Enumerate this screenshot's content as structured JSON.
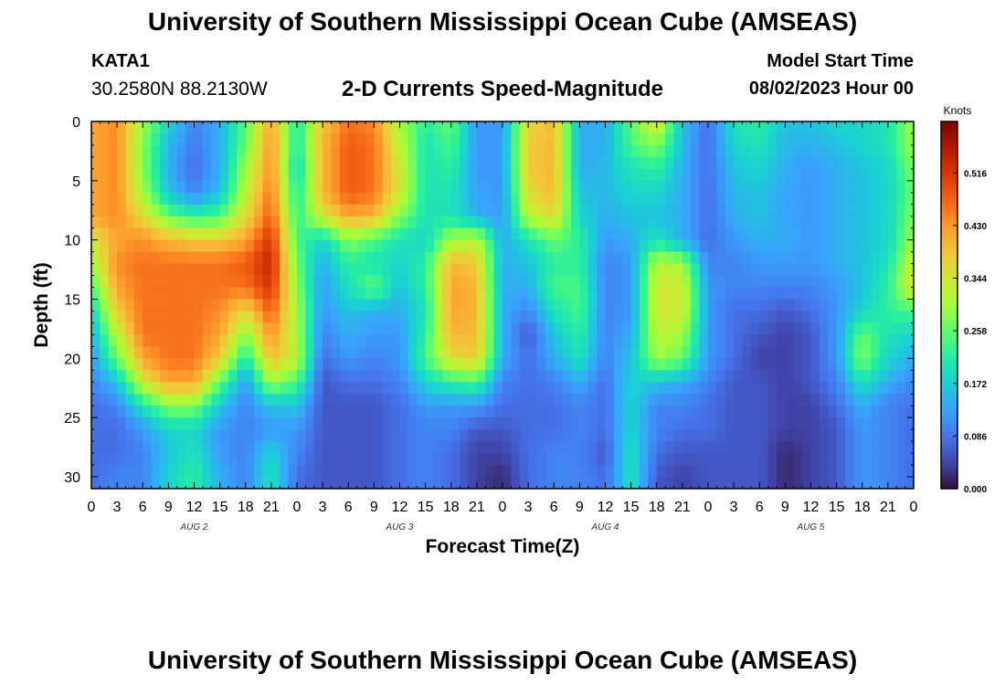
{
  "header": {
    "title": "University of Southern Mississippi Ocean Cube (AMSEAS)",
    "station_id": "KATA1",
    "station_coords": "30.2580N  88.2130W",
    "subtitle": "2-D Currents Speed-Magnitude",
    "model_start_label": "Model Start Time",
    "model_start_value": "08/02/2023 Hour 00"
  },
  "footer": {
    "title": "University of Southern Mississippi Ocean Cube (AMSEAS)"
  },
  "colors": {
    "colormap": [
      "#30123b",
      "#4145ab",
      "#4675ed",
      "#39a2fc",
      "#1bcfd4",
      "#24eca6",
      "#61fc6c",
      "#a4fc3b",
      "#d1e834",
      "#f3c63a",
      "#fe9b2d",
      "#f36315",
      "#d93806",
      "#b11901",
      "#7a0402"
    ]
  },
  "chart_data": {
    "type": "heatmap",
    "title": "2-D Currents Speed-Magnitude",
    "xlabel": "Forecast Time(Z)",
    "ylabel": "Depth (ft)",
    "x_tick_labels": [
      "0",
      "3",
      "6",
      "9",
      "12",
      "15",
      "18",
      "21",
      "0",
      "3",
      "6",
      "9",
      "12",
      "15",
      "18",
      "21",
      "0",
      "3",
      "6",
      "9",
      "12",
      "15",
      "18",
      "21",
      "0",
      "3",
      "6",
      "9",
      "12",
      "15",
      "18",
      "21",
      "0"
    ],
    "x_hours": [
      0,
      96
    ],
    "day_labels": [
      {
        "label": "AUG 2",
        "hour": 12
      },
      {
        "label": "AUG 3",
        "hour": 36
      },
      {
        "label": "AUG 4",
        "hour": 60
      },
      {
        "label": "AUG 5",
        "hour": 84
      }
    ],
    "y_ticks": [
      0,
      5,
      10,
      15,
      20,
      25,
      30
    ],
    "ylim": [
      0,
      31
    ],
    "y_inverted": true,
    "colorbar": {
      "label": "Knots",
      "ticks": [
        "0.000",
        "0.086",
        "0.172",
        "0.258",
        "0.344",
        "0.430",
        "0.516"
      ],
      "range": [
        0,
        0.6
      ]
    },
    "value_min": 0,
    "value_max": 0.6,
    "depth_levels": [
      0,
      2,
      4,
      6,
      8,
      10,
      12,
      14,
      16,
      18,
      20,
      22,
      24,
      26,
      28,
      30,
      31
    ],
    "time_hours": [
      0,
      3,
      6,
      9,
      12,
      15,
      18,
      21,
      24,
      27,
      30,
      33,
      36,
      39,
      42,
      45,
      48,
      51,
      54,
      57,
      60,
      63,
      66,
      69,
      72,
      75,
      78,
      81,
      84,
      87,
      90,
      93,
      96
    ],
    "values": [
      [
        0.42,
        0.44,
        0.3,
        0.18,
        0.1,
        0.14,
        0.25,
        0.42,
        0.2,
        0.38,
        0.46,
        0.44,
        0.3,
        0.22,
        0.26,
        0.12,
        0.12,
        0.36,
        0.4,
        0.14,
        0.14,
        0.25,
        0.36,
        0.16,
        0.08,
        0.2,
        0.22,
        0.16,
        0.16,
        0.18,
        0.18,
        0.2,
        0.3
      ],
      [
        0.42,
        0.44,
        0.28,
        0.15,
        0.09,
        0.14,
        0.26,
        0.44,
        0.2,
        0.4,
        0.48,
        0.46,
        0.32,
        0.2,
        0.24,
        0.12,
        0.12,
        0.38,
        0.4,
        0.14,
        0.14,
        0.24,
        0.28,
        0.15,
        0.08,
        0.18,
        0.2,
        0.15,
        0.14,
        0.16,
        0.18,
        0.2,
        0.3
      ],
      [
        0.42,
        0.44,
        0.28,
        0.14,
        0.08,
        0.14,
        0.3,
        0.44,
        0.18,
        0.4,
        0.48,
        0.46,
        0.34,
        0.2,
        0.22,
        0.12,
        0.12,
        0.38,
        0.4,
        0.14,
        0.15,
        0.2,
        0.22,
        0.14,
        0.08,
        0.16,
        0.18,
        0.14,
        0.12,
        0.14,
        0.16,
        0.18,
        0.28
      ],
      [
        0.42,
        0.44,
        0.3,
        0.16,
        0.1,
        0.16,
        0.32,
        0.46,
        0.2,
        0.4,
        0.48,
        0.46,
        0.34,
        0.2,
        0.2,
        0.13,
        0.12,
        0.36,
        0.4,
        0.16,
        0.15,
        0.18,
        0.18,
        0.14,
        0.08,
        0.15,
        0.16,
        0.13,
        0.12,
        0.14,
        0.16,
        0.18,
        0.26
      ],
      [
        0.42,
        0.44,
        0.36,
        0.26,
        0.22,
        0.24,
        0.36,
        0.48,
        0.22,
        0.34,
        0.42,
        0.4,
        0.28,
        0.2,
        0.2,
        0.14,
        0.12,
        0.32,
        0.36,
        0.18,
        0.14,
        0.16,
        0.16,
        0.14,
        0.08,
        0.14,
        0.16,
        0.13,
        0.12,
        0.14,
        0.16,
        0.18,
        0.28
      ],
      [
        0.34,
        0.42,
        0.44,
        0.4,
        0.38,
        0.38,
        0.42,
        0.52,
        0.24,
        0.18,
        0.28,
        0.24,
        0.2,
        0.18,
        0.3,
        0.32,
        0.14,
        0.2,
        0.26,
        0.22,
        0.12,
        0.14,
        0.2,
        0.14,
        0.08,
        0.12,
        0.14,
        0.14,
        0.12,
        0.14,
        0.16,
        0.18,
        0.3
      ],
      [
        0.3,
        0.44,
        0.46,
        0.46,
        0.46,
        0.46,
        0.48,
        0.54,
        0.26,
        0.14,
        0.22,
        0.2,
        0.18,
        0.22,
        0.4,
        0.38,
        0.14,
        0.16,
        0.22,
        0.22,
        0.1,
        0.12,
        0.32,
        0.3,
        0.1,
        0.1,
        0.12,
        0.12,
        0.12,
        0.14,
        0.16,
        0.2,
        0.34
      ],
      [
        0.24,
        0.42,
        0.46,
        0.46,
        0.46,
        0.46,
        0.46,
        0.52,
        0.28,
        0.12,
        0.2,
        0.26,
        0.16,
        0.22,
        0.42,
        0.4,
        0.14,
        0.14,
        0.24,
        0.24,
        0.1,
        0.12,
        0.34,
        0.34,
        0.12,
        0.1,
        0.1,
        0.1,
        0.1,
        0.12,
        0.16,
        0.22,
        0.36
      ],
      [
        0.18,
        0.38,
        0.46,
        0.46,
        0.46,
        0.44,
        0.36,
        0.48,
        0.3,
        0.12,
        0.16,
        0.14,
        0.14,
        0.2,
        0.42,
        0.4,
        0.14,
        0.1,
        0.2,
        0.24,
        0.1,
        0.12,
        0.34,
        0.34,
        0.12,
        0.08,
        0.08,
        0.06,
        0.08,
        0.12,
        0.18,
        0.22,
        0.24
      ],
      [
        0.14,
        0.32,
        0.46,
        0.46,
        0.46,
        0.42,
        0.28,
        0.44,
        0.3,
        0.1,
        0.14,
        0.12,
        0.12,
        0.22,
        0.4,
        0.4,
        0.14,
        0.06,
        0.16,
        0.22,
        0.1,
        0.14,
        0.32,
        0.3,
        0.12,
        0.08,
        0.06,
        0.04,
        0.06,
        0.12,
        0.26,
        0.2,
        0.18
      ],
      [
        0.12,
        0.26,
        0.42,
        0.46,
        0.46,
        0.38,
        0.2,
        0.4,
        0.32,
        0.08,
        0.12,
        0.1,
        0.12,
        0.24,
        0.36,
        0.38,
        0.14,
        0.08,
        0.14,
        0.2,
        0.1,
        0.16,
        0.3,
        0.26,
        0.12,
        0.08,
        0.04,
        0.04,
        0.06,
        0.12,
        0.28,
        0.18,
        0.14
      ],
      [
        0.1,
        0.16,
        0.34,
        0.42,
        0.42,
        0.26,
        0.12,
        0.3,
        0.24,
        0.06,
        0.08,
        0.08,
        0.1,
        0.18,
        0.22,
        0.24,
        0.1,
        0.08,
        0.1,
        0.14,
        0.08,
        0.18,
        0.16,
        0.14,
        0.1,
        0.06,
        0.06,
        0.04,
        0.06,
        0.1,
        0.2,
        0.14,
        0.1
      ],
      [
        0.08,
        0.1,
        0.2,
        0.28,
        0.28,
        0.16,
        0.1,
        0.16,
        0.16,
        0.06,
        0.06,
        0.06,
        0.08,
        0.12,
        0.12,
        0.12,
        0.08,
        0.08,
        0.08,
        0.1,
        0.08,
        0.18,
        0.1,
        0.1,
        0.08,
        0.06,
        0.06,
        0.04,
        0.04,
        0.08,
        0.14,
        0.1,
        0.08
      ],
      [
        0.08,
        0.08,
        0.12,
        0.18,
        0.18,
        0.12,
        0.1,
        0.12,
        0.12,
        0.06,
        0.06,
        0.06,
        0.08,
        0.1,
        0.1,
        0.06,
        0.06,
        0.08,
        0.08,
        0.1,
        0.08,
        0.18,
        0.1,
        0.08,
        0.08,
        0.06,
        0.06,
        0.04,
        0.04,
        0.06,
        0.12,
        0.1,
        0.08
      ],
      [
        0.08,
        0.08,
        0.1,
        0.16,
        0.2,
        0.12,
        0.1,
        0.18,
        0.1,
        0.06,
        0.06,
        0.06,
        0.08,
        0.1,
        0.08,
        0.04,
        0.04,
        0.08,
        0.1,
        0.1,
        0.06,
        0.2,
        0.08,
        0.06,
        0.06,
        0.06,
        0.06,
        0.02,
        0.04,
        0.06,
        0.12,
        0.1,
        0.08
      ],
      [
        0.08,
        0.1,
        0.1,
        0.18,
        0.22,
        0.14,
        0.1,
        0.2,
        0.08,
        0.06,
        0.06,
        0.06,
        0.08,
        0.1,
        0.08,
        0.04,
        0.02,
        0.08,
        0.1,
        0.1,
        0.08,
        0.2,
        0.06,
        0.04,
        0.06,
        0.06,
        0.06,
        0.02,
        0.04,
        0.06,
        0.12,
        0.1,
        0.08
      ],
      [
        0.08,
        0.1,
        0.1,
        0.18,
        0.22,
        0.14,
        0.1,
        0.2,
        0.08,
        0.06,
        0.06,
        0.06,
        0.08,
        0.1,
        0.08,
        0.04,
        0.02,
        0.08,
        0.1,
        0.1,
        0.08,
        0.2,
        0.06,
        0.04,
        0.06,
        0.06,
        0.06,
        0.02,
        0.04,
        0.06,
        0.12,
        0.1,
        0.08
      ]
    ]
  }
}
